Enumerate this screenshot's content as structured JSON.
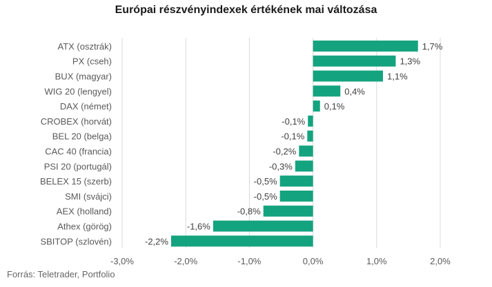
{
  "chart_data": {
    "type": "bar",
    "orientation": "horizontal",
    "title": "Európai részvényindexek értékének mai változása",
    "categories": [
      "ATX (osztrák)",
      "PX (cseh)",
      "BUX (magyar)",
      "WIG 20 (lengyel)",
      "DAX (német)",
      "CROBEX (horvát)",
      "BEL 20 (belga)",
      "CAC 40 (francia)",
      "PSI 20 (portugál)",
      "BELEX 15 (szerb)",
      "SMI (svájci)",
      "AEX (holland)",
      "Athex (görög)",
      "SBITOP (szlovén)"
    ],
    "values": [
      1.65,
      1.3,
      1.1,
      0.43,
      0.11,
      -0.08,
      -0.09,
      -0.22,
      -0.28,
      -0.52,
      -0.52,
      -0.78,
      -1.57,
      -2.23
    ],
    "data_labels": [
      "1,7%",
      "1,3%",
      "1,1%",
      "0,4%",
      "0,1%",
      "-0,1%",
      "-0,1%",
      "-0,2%",
      "-0,3%",
      "-0,5%",
      "-0,5%",
      "-0,8%",
      "-1,6%",
      "-2,2%"
    ],
    "xlim": [
      -3.0,
      2.0
    ],
    "xticks": [
      -3,
      -2,
      -1,
      0,
      1,
      2
    ],
    "xtick_labels": [
      "-3,0%",
      "-2,0%",
      "-1,0%",
      "0,0%",
      "1,0%",
      "2,0%"
    ],
    "xlabel": "",
    "ylabel": "",
    "grid": "vertical",
    "bar_color": "#14a37f",
    "grid_color": "#d9d9d9",
    "source": "Forrás: Teletrader, Portfolio"
  }
}
